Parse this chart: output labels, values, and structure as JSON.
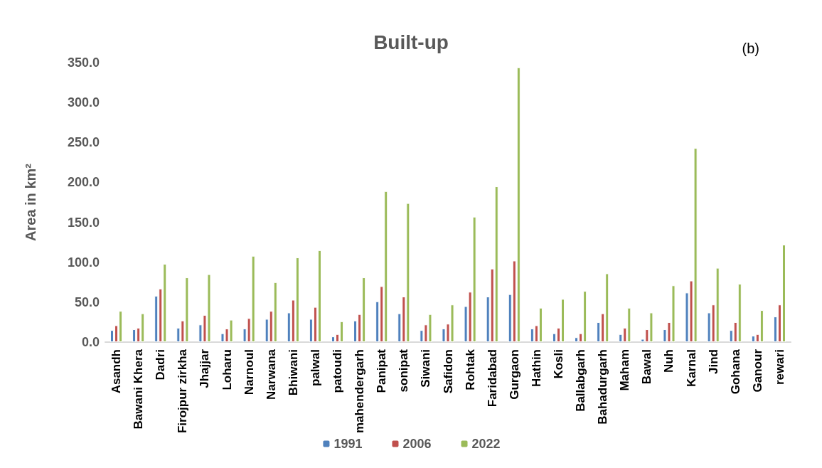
{
  "chart_data": {
    "type": "bar",
    "title": "Built-up",
    "annotations": [
      "(b)"
    ],
    "ylabel": "Area in km²",
    "categories": [
      "Asandh",
      "Bawani Khera",
      "Dadri",
      "Firojpur zirkha",
      "Jhajjar",
      "Loharu",
      "Narnoul",
      "Narwana",
      "Bhiwani",
      "palwal",
      "patoudi",
      "mahendergarh",
      "Panipat",
      "sonipat",
      "Siwani",
      "Safidon",
      "Rohtak",
      "Faridabad",
      "Gurgaon",
      "Hathin",
      "Kosli",
      "Ballabgarh",
      "Bahadurgarh",
      "Maham",
      "Bawal",
      "Nuh",
      "Karnal",
      "Jind",
      "Gohana",
      "Ganour",
      "rewari"
    ],
    "series": [
      {
        "name": "1991",
        "color": "#4f81bd",
        "values": [
          15,
          16,
          58,
          18,
          22,
          11,
          17,
          29,
          37,
          29,
          7,
          27,
          51,
          36,
          15,
          17,
          45,
          57,
          60,
          17,
          11,
          6,
          25,
          10,
          4,
          16,
          62,
          37,
          15,
          8,
          32
        ]
      },
      {
        "name": "2006",
        "color": "#c0504d",
        "values": [
          21,
          18,
          67,
          27,
          34,
          17,
          30,
          39,
          53,
          44,
          10,
          35,
          70,
          57,
          22,
          23,
          63,
          92,
          102,
          21,
          18,
          11,
          36,
          18,
          16,
          25,
          77,
          47,
          25,
          10,
          47
        ]
      },
      {
        "name": "2022",
        "color": "#9bbb59",
        "values": [
          39,
          36,
          98,
          81,
          85,
          28,
          108,
          75,
          106,
          115,
          26,
          81,
          189,
          174,
          35,
          47,
          157,
          195,
          344,
          43,
          54,
          64,
          86,
          43,
          37,
          71,
          243,
          93,
          73,
          40,
          122
        ]
      }
    ],
    "ylim": [
      0,
      350
    ],
    "yticks": [
      {
        "value": 0,
        "label": "0.0"
      },
      {
        "value": 50,
        "label": "50.0"
      },
      {
        "value": 100,
        "label": "100.0"
      },
      {
        "value": 150,
        "label": "150.0"
      },
      {
        "value": 200,
        "label": "200.0"
      },
      {
        "value": 250,
        "label": "250.0"
      },
      {
        "value": 300,
        "label": "300.0"
      },
      {
        "value": 350,
        "label": "350.0"
      }
    ],
    "grid": false,
    "legend": "bottom"
  }
}
